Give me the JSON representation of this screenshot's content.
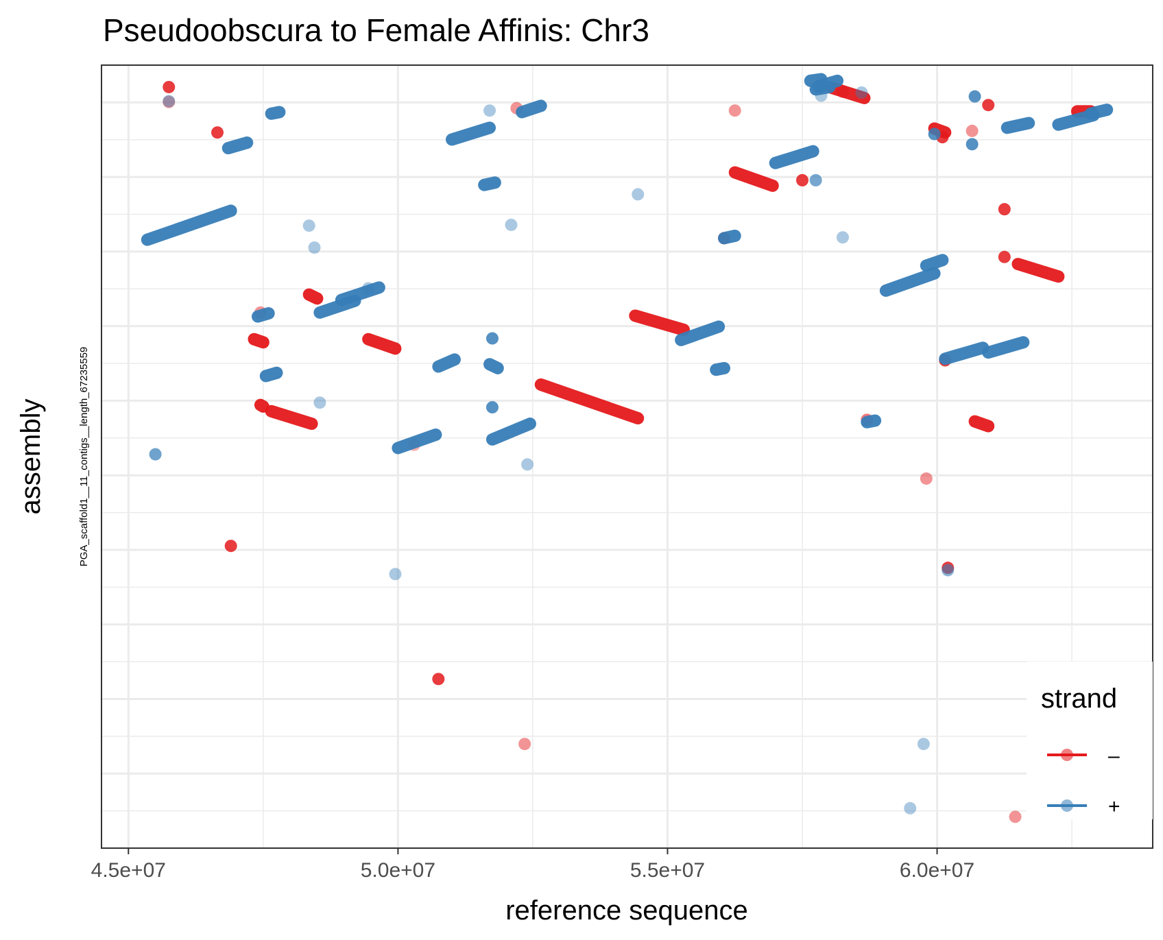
{
  "chart_data": {
    "type": "scatter",
    "title": "Pseudoobscura to Female Affinis: Chr3",
    "xlabel": "reference sequence",
    "ylabel": "assembly",
    "y_tick_label": "PGA_scaffold1__11_contigs__length_67235559",
    "xlim": [
      44500000,
      64000000
    ],
    "ylim": [
      0,
      100
    ],
    "x_ticks": [
      45000000,
      50000000,
      55000000,
      60000000
    ],
    "x_tick_labels": [
      "4.5e+07",
      "5.0e+07",
      "5.5e+07",
      "6.0e+07"
    ],
    "grid": true,
    "legend": {
      "title": "strand",
      "position": "bottom-right"
    },
    "colors": {
      "minus": "#E41A1C",
      "plus": "#377EB8"
    },
    "series": [
      {
        "name": "–",
        "color": "#E41A1C",
        "segments": [
          [
            [
              47330000,
              65.0
            ],
            [
              47500000,
              64.6
            ]
          ],
          [
            [
              47450000,
              56.6
            ],
            [
              47500000,
              56.4
            ]
          ],
          [
            [
              47650000,
              55.8
            ],
            [
              48400000,
              54.2
            ]
          ],
          [
            [
              48350000,
              70.7
            ],
            [
              48500000,
              70.2
            ]
          ],
          [
            [
              49450000,
              65.0
            ],
            [
              49950000,
              63.8
            ]
          ],
          [
            [
              52650000,
              59.2
            ],
            [
              54450000,
              54.9
            ]
          ],
          [
            [
              54400000,
              68.0
            ],
            [
              55300000,
              66.2
            ]
          ],
          [
            [
              56250000,
              86.3
            ],
            [
              56950000,
              84.6
            ]
          ],
          [
            [
              58050000,
              97.1
            ],
            [
              58650000,
              95.8
            ]
          ],
          [
            [
              59950000,
              91.9
            ],
            [
              60150000,
              91.4
            ]
          ],
          [
            [
              60700000,
              54.5
            ],
            [
              60950000,
              53.9
            ]
          ],
          [
            [
              61500000,
              74.6
            ],
            [
              62250000,
              73.0
            ]
          ],
          [
            [
              62600000,
              94.1
            ],
            [
              62850000,
              94.1
            ]
          ]
        ],
        "points": [
          [
            45750000,
            97.2,
            1.0
          ],
          [
            46650000,
            91.4,
            1.0
          ],
          [
            46900000,
            38.6,
            1.0
          ],
          [
            47450000,
            68.4,
            0.55
          ],
          [
            50750000,
            21.6,
            1.0
          ],
          [
            52350000,
            13.3,
            0.55
          ],
          [
            52200000,
            94.5,
            0.55
          ],
          [
            56250000,
            94.2,
            0.55
          ],
          [
            57500000,
            85.3,
            1.0
          ],
          [
            58250000,
            96.6,
            0.55
          ],
          [
            59800000,
            47.2,
            0.55
          ],
          [
            60150000,
            62.3,
            1.0
          ],
          [
            60200000,
            35.8,
            1.0
          ],
          [
            60650000,
            91.6,
            0.55
          ],
          [
            60950000,
            94.9,
            1.0
          ],
          [
            61250000,
            81.6,
            1.0
          ],
          [
            61250000,
            75.5,
            1.0
          ],
          [
            61450000,
            4.0,
            0.55
          ],
          [
            60100000,
            90.8,
            1.0
          ],
          [
            56050000,
            77.9,
            1.0
          ],
          [
            58700000,
            54.7,
            0.7
          ],
          [
            50300000,
            51.5,
            0.4
          ],
          [
            45750000,
            95.3,
            0.55
          ]
        ]
      },
      {
        "name": "+",
        "color": "#377EB8",
        "segments": [
          [
            [
              45350000,
              77.7
            ],
            [
              46900000,
              81.4
            ]
          ],
          [
            [
              46850000,
              89.4
            ],
            [
              47200000,
              90.1
            ]
          ],
          [
            [
              47400000,
              67.9
            ],
            [
              47600000,
              68.3
            ]
          ],
          [
            [
              47550000,
              60.3
            ],
            [
              47750000,
              60.7
            ]
          ],
          [
            [
              47650000,
              93.8
            ],
            [
              47800000,
              94.0
            ]
          ],
          [
            [
              48550000,
              68.4
            ],
            [
              49200000,
              69.9
            ]
          ],
          [
            [
              48950000,
              70.0
            ],
            [
              49650000,
              71.6
            ]
          ],
          [
            [
              50000000,
              51.1
            ],
            [
              50700000,
              52.8
            ]
          ],
          [
            [
              50750000,
              61.5
            ],
            [
              51050000,
              62.4
            ]
          ],
          [
            [
              51000000,
              90.5
            ],
            [
              51700000,
              92.0
            ]
          ],
          [
            [
              51600000,
              84.7
            ],
            [
              51800000,
              85.0
            ]
          ],
          [
            [
              51750000,
              52.2
            ],
            [
              52450000,
              54.2
            ]
          ],
          [
            [
              51700000,
              61.8
            ],
            [
              51850000,
              61.3
            ]
          ],
          [
            [
              52300000,
              94.0
            ],
            [
              52650000,
              94.8
            ]
          ],
          [
            [
              55250000,
              64.9
            ],
            [
              55950000,
              66.6
            ]
          ],
          [
            [
              55900000,
              61.1
            ],
            [
              56050000,
              61.3
            ]
          ],
          [
            [
              56050000,
              77.9
            ],
            [
              56250000,
              78.2
            ]
          ],
          [
            [
              57000000,
              87.5
            ],
            [
              57700000,
              89.0
            ]
          ],
          [
            [
              57650000,
              98.0
            ],
            [
              57850000,
              98.2
            ]
          ],
          [
            [
              57800000,
              97.3
            ],
            [
              58150000,
              98.0
            ]
          ],
          [
            [
              57750000,
              96.9
            ],
            [
              58000000,
              97.2
            ]
          ],
          [
            [
              58700000,
              54.4
            ],
            [
              58850000,
              54.6
            ]
          ],
          [
            [
              59050000,
              71.2
            ],
            [
              59950000,
              73.4
            ]
          ],
          [
            [
              59800000,
              74.4
            ],
            [
              60100000,
              75.1
            ]
          ],
          [
            [
              60150000,
              62.5
            ],
            [
              60850000,
              63.9
            ]
          ],
          [
            [
              60950000,
              63.3
            ],
            [
              61600000,
              64.6
            ]
          ],
          [
            [
              61300000,
              92.0
            ],
            [
              61700000,
              92.6
            ]
          ],
          [
            [
              62250000,
              92.4
            ],
            [
              62900000,
              93.6
            ]
          ],
          [
            [
              62850000,
              93.8
            ],
            [
              63150000,
              94.3
            ]
          ]
        ],
        "points": [
          [
            45750000,
            95.4,
            0.55
          ],
          [
            45500000,
            50.3,
            0.85
          ],
          [
            48350000,
            79.5,
            0.5
          ],
          [
            48450000,
            76.7,
            0.5
          ],
          [
            48550000,
            56.9,
            0.5
          ],
          [
            49450000,
            71.5,
            0.5
          ],
          [
            49950000,
            35.0,
            0.5
          ],
          [
            51700000,
            94.2,
            0.5
          ],
          [
            51750000,
            65.1,
            1.0
          ],
          [
            51750000,
            56.3,
            1.0
          ],
          [
            52100000,
            79.6,
            0.5
          ],
          [
            52400000,
            49.0,
            0.5
          ],
          [
            54450000,
            83.5,
            0.5
          ],
          [
            57750000,
            85.3,
            0.8
          ],
          [
            57850000,
            96.1,
            0.5
          ],
          [
            58250000,
            78.0,
            0.5
          ],
          [
            59750000,
            13.3,
            0.5
          ],
          [
            59500000,
            5.1,
            0.5
          ],
          [
            60200000,
            35.5,
            0.7
          ],
          [
            60650000,
            89.9,
            1.0
          ],
          [
            60700000,
            96.0,
            1.0
          ],
          [
            59950000,
            91.2,
            1.0
          ],
          [
            58600000,
            96.5,
            0.5
          ]
        ]
      }
    ]
  }
}
